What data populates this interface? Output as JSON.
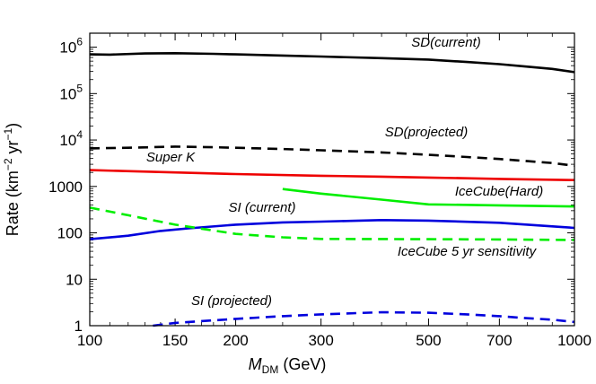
{
  "chart_data": {
    "type": "line",
    "title": "",
    "xlabel_main": "M",
    "xlabel_sub": "DM",
    "xlabel_unit": " (GeV)",
    "ylabel_text": "Rate (km",
    "ylabel_exp1": "−2",
    "ylabel_mid": " yr",
    "ylabel_exp2": "−1",
    "ylabel_end": ")",
    "xscale": "log",
    "yscale": "log",
    "xlim": [
      100,
      1000
    ],
    "ylim": [
      1,
      2000000
    ],
    "x_ticks": [
      {
        "value": 100,
        "label": "100"
      },
      {
        "value": 150,
        "label": "150"
      },
      {
        "value": 200,
        "label": "200"
      },
      {
        "value": 300,
        "label": "300"
      },
      {
        "value": 500,
        "label": "500"
      },
      {
        "value": 700,
        "label": "700"
      },
      {
        "value": 1000,
        "label": "1000"
      }
    ],
    "x_minor_ticks": [
      110,
      120,
      130,
      140,
      160,
      170,
      180,
      190,
      250,
      350,
      400,
      450,
      600,
      800,
      900
    ],
    "y_ticks": [
      {
        "value": 1,
        "label": "1",
        "sup": ""
      },
      {
        "value": 10,
        "label": "10",
        "sup": ""
      },
      {
        "value": 100,
        "label": "100",
        "sup": ""
      },
      {
        "value": 1000,
        "label": "1000",
        "sup": ""
      },
      {
        "value": 10000,
        "label": "10",
        "sup": "4"
      },
      {
        "value": 100000,
        "label": "10",
        "sup": "5"
      },
      {
        "value": 1000000,
        "label": "10",
        "sup": "6"
      }
    ],
    "series": [
      {
        "name": "SD(current)",
        "color": "#000000",
        "dash": "solid",
        "x": [
          100,
          110,
          130,
          150,
          180,
          200,
          250,
          300,
          400,
          500,
          600,
          700,
          800,
          900,
          1000
        ],
        "y": [
          700000,
          690000,
          730000,
          740000,
          720000,
          700000,
          660000,
          630000,
          580000,
          540000,
          480000,
          430000,
          380000,
          340000,
          290000
        ]
      },
      {
        "name": "SD(projected)",
        "color": "#000000",
        "dash": "dashed",
        "x": [
          100,
          120,
          150,
          180,
          200,
          250,
          300,
          400,
          500,
          600,
          700,
          800,
          900,
          1000
        ],
        "y": [
          6600,
          6800,
          7200,
          7000,
          6800,
          6400,
          6000,
          5400,
          4800,
          4300,
          3900,
          3500,
          3200,
          2800
        ]
      },
      {
        "name": "Super K",
        "color": "#ee0000",
        "dash": "solid",
        "x": [
          100,
          150,
          200,
          300,
          400,
          500,
          700,
          1000
        ],
        "y": [
          2250,
          2000,
          1850,
          1700,
          1620,
          1550,
          1450,
          1370
        ]
      },
      {
        "name": "IceCube(Hard)",
        "color": "#00ee00",
        "dash": "solid",
        "x": [
          250,
          300,
          400,
          500,
          700,
          1000
        ],
        "y": [
          880,
          700,
          520,
          410,
          390,
          370
        ]
      },
      {
        "name": "SI (current)",
        "color": "#0000dd",
        "dash": "solid",
        "x": [
          100,
          120,
          140,
          160,
          200,
          250,
          300,
          400,
          500,
          700,
          1000
        ],
        "y": [
          73,
          87,
          110,
          125,
          150,
          168,
          175,
          188,
          183,
          165,
          128
        ]
      },
      {
        "name": "IceCube 5 yr sensitivity",
        "color": "#00ee00",
        "dash": "dashed",
        "x": [
          100,
          120,
          150,
          200,
          250,
          300,
          500,
          700,
          1000
        ],
        "y": [
          350,
          240,
          150,
          95,
          80,
          74,
          73,
          72,
          70
        ]
      },
      {
        "name": "SI (projected)",
        "color": "#0000dd",
        "dash": "dashed",
        "x": [
          135,
          150,
          200,
          250,
          300,
          400,
          500,
          600,
          700,
          800,
          900,
          1000
        ],
        "y": [
          1.0,
          1.15,
          1.4,
          1.6,
          1.75,
          1.95,
          1.9,
          1.75,
          1.6,
          1.45,
          1.35,
          1.2
        ]
      }
    ],
    "annotations": [
      {
        "key": "sd_current",
        "text": "SD(current)"
      },
      {
        "key": "sd_projected",
        "text": "SD(projected)"
      },
      {
        "key": "super_k",
        "text": "Super K"
      },
      {
        "key": "icecube_hard",
        "text": "IceCube(Hard)"
      },
      {
        "key": "si_current",
        "text": "SI (current)"
      },
      {
        "key": "icecube_5yr",
        "text": "IceCube 5 yr sensitivity"
      },
      {
        "key": "si_projected",
        "text": "SI (projected)"
      }
    ]
  }
}
